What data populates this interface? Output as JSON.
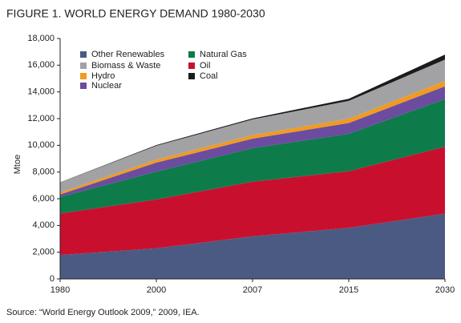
{
  "chart_data": {
    "type": "stacked_area",
    "title": "FIGURE 1. WORLD ENERGY DEMAND 1980-2030",
    "y_label": "Mtoe",
    "source": "Source: “World Energy Outlook 2009,” 2009, IEA.",
    "categories": [
      "1980",
      "2000",
      "2007",
      "2015",
      "2030"
    ],
    "ylim": [
      0,
      18000
    ],
    "yticks": [
      0,
      {
        "value": 2000,
        "label": "2,000"
      },
      {
        "value": 4000,
        "label": "4,000"
      },
      {
        "value": 6000,
        "label": "6,000"
      },
      {
        "value": 8000,
        "label": "8,000"
      },
      {
        "value": 10000,
        "label": "10,000"
      },
      {
        "value": 12000,
        "label": "12,000"
      },
      {
        "value": 14000,
        "label": "14,000"
      },
      {
        "value": 16000,
        "label": "16,000"
      },
      {
        "value": 18000,
        "label": "18,000"
      }
    ],
    "series": [
      {
        "name": "Other Renewables",
        "color": "#4b5a83",
        "values": [
          1792,
          2292,
          3184,
          3828,
          4887
        ]
      },
      {
        "name": "Oil",
        "color": "#c8102e",
        "values": [
          3107,
          3655,
          4093,
          4234,
          5009
        ]
      },
      {
        "name": "Natural Gas",
        "color": "#0e7b4b",
        "values": [
          1234,
          2085,
          2512,
          2801,
          3561
        ]
      },
      {
        "name": "Nuclear",
        "color": "#6b4c9f",
        "values": [
          186,
          676,
          709,
          810,
          956
        ]
      },
      {
        "name": "Hydro",
        "color": "#f29a1f",
        "values": [
          148,
          225,
          265,
          317,
          402
        ]
      },
      {
        "name": "Biomass & Waste",
        "color": "#a2a2a4",
        "values": [
          749,
          1031,
          1176,
          1338,
          1604
        ]
      },
      {
        "name": "Coal",
        "color": "#1b1b1b",
        "values": [
          12,
          55,
          74,
          160,
          370
        ]
      }
    ]
  }
}
